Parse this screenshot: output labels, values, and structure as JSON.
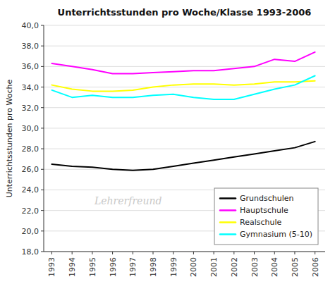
{
  "chart_data": {
    "type": "line",
    "title": "Unterrichtsstunden pro Woche/Klasse 1993-2006",
    "y_label": "Unterrichtsstunden pro Woche",
    "x": [
      1993,
      1994,
      1995,
      1996,
      1997,
      1998,
      1999,
      2000,
      2001,
      2002,
      2003,
      2004,
      2005,
      2006
    ],
    "series": [
      {
        "name": "Grundschulen",
        "color": "#000000",
        "values": [
          26.5,
          26.3,
          26.2,
          26.0,
          25.9,
          26.0,
          26.3,
          26.6,
          26.9,
          27.2,
          27.5,
          27.8,
          28.1,
          28.7
        ]
      },
      {
        "name": "Hauptschule",
        "color": "#ff00ff",
        "values": [
          36.3,
          36.0,
          35.7,
          35.3,
          35.3,
          35.4,
          35.5,
          35.6,
          35.6,
          35.8,
          36.0,
          36.7,
          36.5,
          37.4
        ]
      },
      {
        "name": "Realschule",
        "color": "#ffff00",
        "values": [
          34.2,
          33.8,
          33.6,
          33.6,
          33.7,
          34.0,
          34.2,
          34.3,
          34.3,
          34.2,
          34.3,
          34.5,
          34.5,
          34.6
        ]
      },
      {
        "name": "Gymnasium (5-10)",
        "color": "#00ffff",
        "values": [
          33.7,
          33.0,
          33.2,
          33.0,
          33.0,
          33.2,
          33.3,
          33.0,
          32.8,
          32.8,
          33.3,
          33.8,
          34.2,
          35.1
        ]
      }
    ],
    "xlim": [
      1992.6,
      2006.5
    ],
    "xticks": [
      1993,
      1994,
      1995,
      1996,
      1997,
      1998,
      1999,
      2000,
      2001,
      2002,
      2003,
      2004,
      2005,
      2006
    ],
    "ylim": [
      18.0,
      40.0
    ],
    "yticks": [
      {
        "value": 18,
        "label": "18,0"
      },
      {
        "value": 20,
        "label": "20,0"
      },
      {
        "value": 22,
        "label": "22,0"
      },
      {
        "value": 24,
        "label": "24,0"
      },
      {
        "value": 26,
        "label": "26,0"
      },
      {
        "value": 28,
        "label": "28,0"
      },
      {
        "value": 30,
        "label": "30,0"
      },
      {
        "value": 32,
        "label": "32,0"
      },
      {
        "value": 34,
        "label": "34,0"
      },
      {
        "value": 36,
        "label": "36,0"
      },
      {
        "value": 38,
        "label": "38,0"
      },
      {
        "value": 40,
        "label": "40,0"
      }
    ],
    "grid": true,
    "legend": "lower right",
    "annotations": [
      "Lehrerfreund"
    ]
  }
}
